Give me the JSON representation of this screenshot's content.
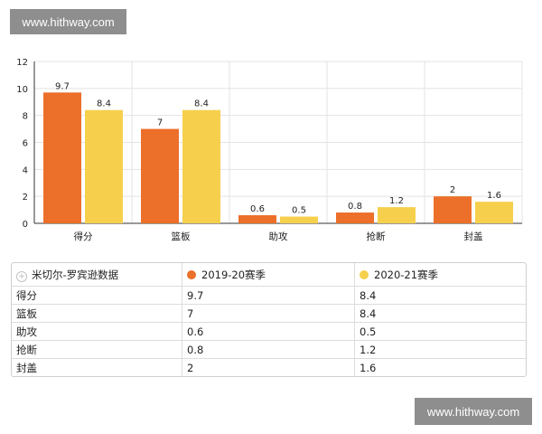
{
  "watermark_text": "www.hithway.com",
  "chart_data": {
    "type": "bar",
    "title": "",
    "xlabel": "",
    "ylabel": "",
    "ylim": [
      0,
      12
    ],
    "yticks": [
      "0",
      "2",
      "4",
      "6",
      "8",
      "10",
      "12"
    ],
    "categories": [
      "得分",
      "篮板",
      "助攻",
      "抢断",
      "封盖"
    ],
    "series": [
      {
        "name": "2019-20赛季",
        "color": "#ec6f2a",
        "values": [
          9.7,
          7,
          0.6,
          0.8,
          2
        ],
        "labels": [
          "9.7",
          "7",
          "0.6",
          "0.8",
          "2"
        ]
      },
      {
        "name": "2020-21赛季",
        "color": "#f6d04d",
        "values": [
          8.4,
          8.4,
          0.5,
          1.2,
          1.6
        ],
        "labels": [
          "8.4",
          "8.4",
          "0.5",
          "1.2",
          "1.6"
        ]
      }
    ],
    "grid": true
  },
  "table": {
    "header_label": "米切尔-罗宾逊数据",
    "rows": [
      [
        "得分",
        "9.7",
        "8.4"
      ],
      [
        "篮板",
        "7",
        "8.4"
      ],
      [
        "助攻",
        "0.6",
        "0.5"
      ],
      [
        "抢断",
        "0.8",
        "1.2"
      ],
      [
        "封盖",
        "2",
        "1.6"
      ]
    ]
  }
}
